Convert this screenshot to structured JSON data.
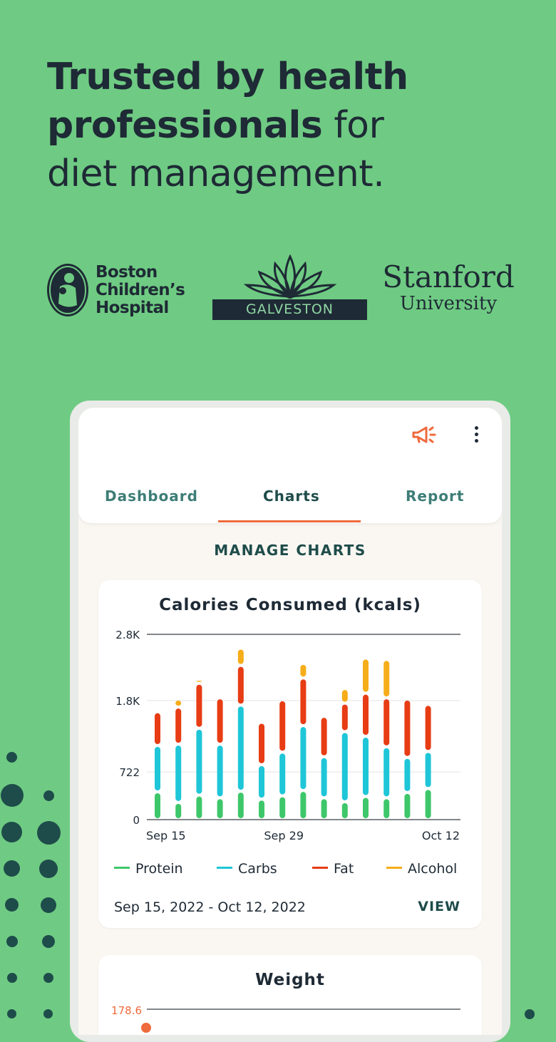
{
  "headline": {
    "bold1": "Trusted by health",
    "bold2": "professionals",
    "rest2": " for",
    "line3": "diet management."
  },
  "logos": {
    "bch": [
      "Boston",
      "Children’s",
      "Hospital"
    ],
    "galveston": "GALVESTON",
    "stanford": [
      "Stanford",
      "University"
    ]
  },
  "tabs": [
    {
      "label": "Dashboard",
      "active": false
    },
    {
      "label": "Charts",
      "active": true
    },
    {
      "label": "Report",
      "active": false
    }
  ],
  "manage_label": "MANAGE CHARTS",
  "colors": {
    "protein": "#3ec76a",
    "carbs": "#1ec6d8",
    "fat": "#e73c14",
    "alcohol": "#f6ad1a",
    "accent": "#ef6a3c",
    "dark_teal": "#1e4c4a"
  },
  "chart_data": [
    {
      "type": "bar",
      "stacked": true,
      "title": "Calories Consumed (kcals)",
      "y_ticks": [
        "2.8K",
        "1.8K",
        "722",
        "0"
      ],
      "y_tick_values": [
        2800,
        1800,
        722,
        0
      ],
      "ylim": [
        0,
        2800
      ],
      "x_tick_labels": [
        {
          "label": "Sep 15",
          "index": 0
        },
        {
          "label": "Sep 29",
          "index": 6
        },
        {
          "label": "Oct 12",
          "index": 12
        }
      ],
      "series": [
        {
          "name": "Protein",
          "values": [
            420,
            260,
            370,
            330,
            430,
            310,
            360,
            440,
            330,
            270,
            350,
            330,
            410,
            470
          ]
        },
        {
          "name": "Carbs",
          "values": [
            700,
            880,
            1010,
            810,
            1300,
            520,
            660,
            980,
            620,
            1060,
            910,
            770,
            530,
            560
          ]
        },
        {
          "name": "Fat",
          "values": [
            510,
            560,
            680,
            700,
            600,
            640,
            790,
            720,
            610,
            430,
            650,
            740,
            880,
            710
          ]
        },
        {
          "name": "Alcohol",
          "values": [
            0,
            120,
            60,
            0,
            260,
            0,
            0,
            220,
            0,
            220,
            530,
            580,
            0,
            0
          ]
        }
      ],
      "legend": [
        "Protein",
        "Carbs",
        "Fat",
        "Alcohol"
      ],
      "legend_position": "bottom"
    },
    {
      "type": "line",
      "title": "Weight",
      "y_ticks": [
        "178.6"
      ],
      "y_tick_values": [
        178.6
      ]
    }
  ],
  "card1_footer": {
    "date_range": "Sep 15, 2022 - Oct 12, 2022",
    "view_label": "VIEW"
  },
  "icons": {
    "megaphone": "megaphone-icon",
    "kebab": "more-vert-icon"
  }
}
